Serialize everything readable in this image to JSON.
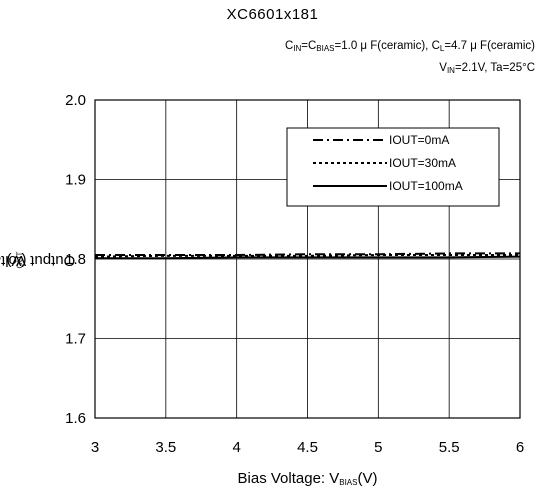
{
  "title": "XC6601x181",
  "conditions": {
    "line1_prefix": "C",
    "line1_sub1": "IN",
    "line1_mid1": "=C",
    "line1_sub2": "BIAS",
    "line1_mid2": "=1.0 μ F(ceramic), C",
    "line1_sub3": "L",
    "line1_end": "=4.7 μ F(ceramic)",
    "line2_prefix": "V",
    "line2_sub": "IN",
    "line2_end": "=2.1V, Ta=25°C"
  },
  "axis": {
    "ylabel_text": "Output Voltage: V",
    "ylabel_sub": "OUT",
    "ylabel_end": "(V)",
    "xlabel_text": "Bias Voltage: V",
    "xlabel_sub": "BIAS",
    "xlabel_end": "(V)"
  },
  "chart_data": {
    "type": "line",
    "title": "XC6601x181",
    "xlabel": "Bias Voltage: VBIAS(V)",
    "ylabel": "Output Voltage: VOUT(V)",
    "xlim": [
      3,
      6
    ],
    "ylim": [
      1.6,
      2.0
    ],
    "xticks": [
      "3",
      "3.5",
      "4",
      "4.5",
      "5",
      "5.5",
      "6"
    ],
    "yticks": [
      "1.6",
      "1.7",
      "1.8",
      "1.9",
      "2.0"
    ],
    "xtick_values": [
      3,
      3.5,
      4,
      4.5,
      5,
      5.5,
      6
    ],
    "ytick_values": [
      1.6,
      1.7,
      1.8,
      1.9,
      2.0
    ],
    "grid": true,
    "legend_position": "top-right",
    "series": [
      {
        "name": "IOUT=0mA",
        "style": "dash-dot",
        "x": [
          3,
          3.5,
          4,
          4.5,
          5,
          5.5,
          6
        ],
        "values": [
          1.805,
          1.805,
          1.805,
          1.806,
          1.806,
          1.807,
          1.807
        ]
      },
      {
        "name": "IOUT=30mA",
        "style": "dotted",
        "x": [
          3,
          3.5,
          4,
          4.5,
          5,
          5.5,
          6
        ],
        "values": [
          1.803,
          1.804,
          1.804,
          1.804,
          1.805,
          1.805,
          1.805
        ]
      },
      {
        "name": "IOUT=100mA",
        "style": "solid",
        "x": [
          3,
          3.5,
          4,
          4.5,
          5,
          5.5,
          6
        ],
        "values": [
          1.801,
          1.801,
          1.802,
          1.802,
          1.802,
          1.802,
          1.803
        ]
      }
    ]
  }
}
